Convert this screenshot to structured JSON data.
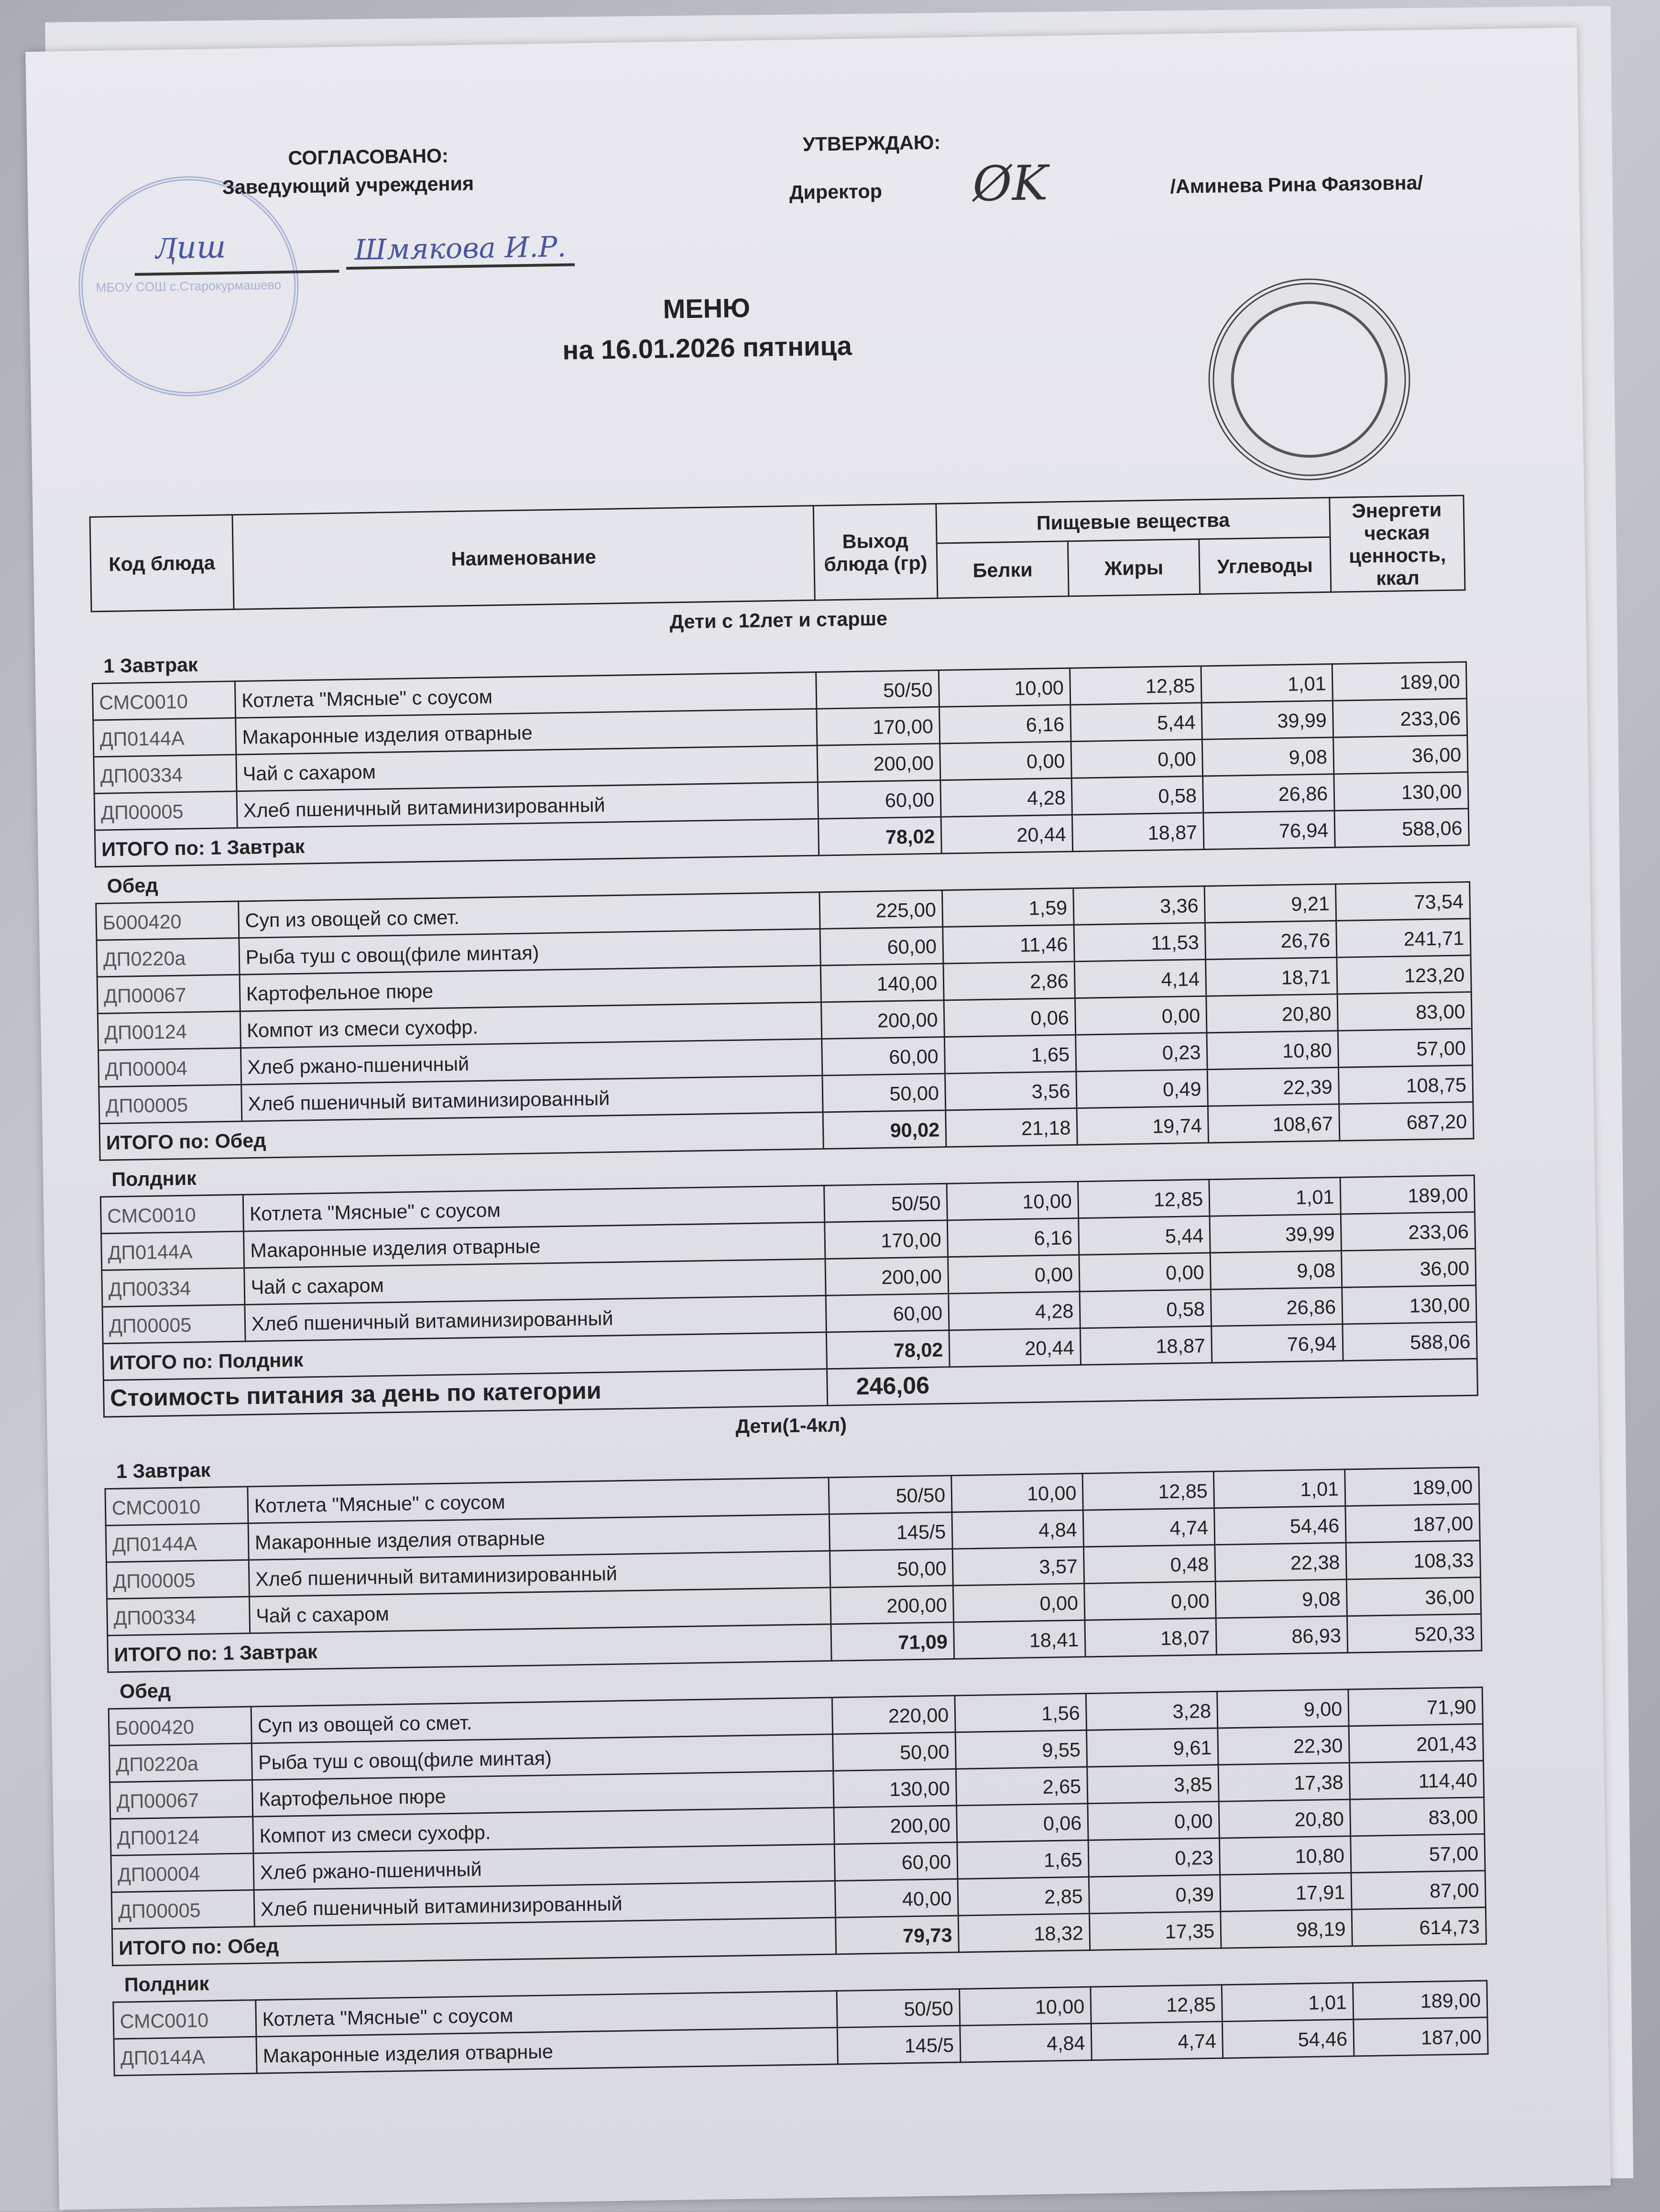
{
  "header": {
    "agreed": "СОГЛАСОВАНО:",
    "agreed_role": "Заведующий  учреждения",
    "agreed_name_handwritten": "Шмякова И.Р.",
    "approve": "УТВЕРЖДАЮ:",
    "approve_role": "Директор",
    "approve_name": "/Аминева Рина Фаязовна/",
    "stamp_text": "МБОУ СОШ с.Старокурмашево"
  },
  "title": "МЕНЮ",
  "subtitle": "на 16.01.2026  пятница",
  "columns": {
    "code": "Код блюда",
    "name": "Наименование",
    "yield": "Выход блюда (гр)",
    "nutrients": "Пищевые вещества",
    "protein": "Белки",
    "fat": "Жиры",
    "carbs": "Углеводы",
    "energy": "Энергети ческая ценность, ккал"
  },
  "categories": [
    {
      "title": "Дети с 12лет и старше",
      "meals": [
        {
          "name": "1 Завтрак",
          "rows": [
            [
              "СМС0010",
              "Котлета \"Мясные\" с соусом",
              "50/50",
              "10,00",
              "12,85",
              "1,01",
              "189,00"
            ],
            [
              "ДП0144А",
              "Макаронные изделия отварные",
              "170,00",
              "6,16",
              "5,44",
              "39,99",
              "233,06"
            ],
            [
              "ДП00334",
              "Чай с сахаром",
              "200,00",
              "0,00",
              "0,00",
              "9,08",
              "36,00"
            ],
            [
              "ДП00005",
              "Хлеб пшеничный витаминизированный",
              "60,00",
              "4,28",
              "0,58",
              "26,86",
              "130,00"
            ]
          ],
          "total": [
            "ИТОГО по: 1 Завтрак",
            "78,02",
            "20,44",
            "18,87",
            "76,94",
            "588,06"
          ]
        },
        {
          "name": "Обед",
          "rows": [
            [
              "Б000420",
              "Суп из овощей со смет.",
              "225,00",
              "1,59",
              "3,36",
              "9,21",
              "73,54"
            ],
            [
              "ДП0220а",
              "Рыба туш с овощ(филе минтая)",
              "60,00",
              "11,46",
              "11,53",
              "26,76",
              "241,71"
            ],
            [
              "ДП00067",
              "Картофельное пюре",
              "140,00",
              "2,86",
              "4,14",
              "18,71",
              "123,20"
            ],
            [
              "ДП00124",
              "Компот из смеси сухофр.",
              "200,00",
              "0,06",
              "0,00",
              "20,80",
              "83,00"
            ],
            [
              "ДП00004",
              "Хлеб ржано-пшеничный",
              "60,00",
              "1,65",
              "0,23",
              "10,80",
              "57,00"
            ],
            [
              "ДП00005",
              "Хлеб пшеничный витаминизированный",
              "50,00",
              "3,56",
              "0,49",
              "22,39",
              "108,75"
            ]
          ],
          "total": [
            "ИТОГО по: Обед",
            "90,02",
            "21,18",
            "19,74",
            "108,67",
            "687,20"
          ]
        },
        {
          "name": "Полдник",
          "rows": [
            [
              "СМС0010",
              "Котлета \"Мясные\" с соусом",
              "50/50",
              "10,00",
              "12,85",
              "1,01",
              "189,00"
            ],
            [
              "ДП0144А",
              "Макаронные изделия отварные",
              "170,00",
              "6,16",
              "5,44",
              "39,99",
              "233,06"
            ],
            [
              "ДП00334",
              "Чай с сахаром",
              "200,00",
              "0,00",
              "0,00",
              "9,08",
              "36,00"
            ],
            [
              "ДП00005",
              "Хлеб пшеничный витаминизированный",
              "60,00",
              "4,28",
              "0,58",
              "26,86",
              "130,00"
            ]
          ],
          "total": [
            "ИТОГО по: Полдник",
            "78,02",
            "20,44",
            "18,87",
            "76,94",
            "588,06"
          ]
        }
      ],
      "cost": [
        "Стоимость питания за день по категории",
        "246,06"
      ]
    },
    {
      "title": "Дети(1-4кл)",
      "meals": [
        {
          "name": "1 Завтрак",
          "rows": [
            [
              "СМС0010",
              "Котлета \"Мясные\" с соусом",
              "50/50",
              "10,00",
              "12,85",
              "1,01",
              "189,00"
            ],
            [
              "ДП0144А",
              "Макаронные изделия отварные",
              "145/5",
              "4,84",
              "4,74",
              "54,46",
              "187,00"
            ],
            [
              "ДП00005",
              "Хлеб пшеничный витаминизированный",
              "50,00",
              "3,57",
              "0,48",
              "22,38",
              "108,33"
            ],
            [
              "ДП00334",
              "Чай с сахаром",
              "200,00",
              "0,00",
              "0,00",
              "9,08",
              "36,00"
            ]
          ],
          "total": [
            "ИТОГО по: 1 Завтрак",
            "71,09",
            "18,41",
            "18,07",
            "86,93",
            "520,33"
          ]
        },
        {
          "name": "Обед",
          "rows": [
            [
              "Б000420",
              "Суп из овощей со смет.",
              "220,00",
              "1,56",
              "3,28",
              "9,00",
              "71,90"
            ],
            [
              "ДП0220а",
              "Рыба туш с овощ(филе минтая)",
              "50,00",
              "9,55",
              "9,61",
              "22,30",
              "201,43"
            ],
            [
              "ДП00067",
              "Картофельное пюре",
              "130,00",
              "2,65",
              "3,85",
              "17,38",
              "114,40"
            ],
            [
              "ДП00124",
              "Компот из смеси сухофр.",
              "200,00",
              "0,06",
              "0,00",
              "20,80",
              "83,00"
            ],
            [
              "ДП00004",
              "Хлеб ржано-пшеничный",
              "60,00",
              "1,65",
              "0,23",
              "10,80",
              "57,00"
            ],
            [
              "ДП00005",
              "Хлеб пшеничный витаминизированный",
              "40,00",
              "2,85",
              "0,39",
              "17,91",
              "87,00"
            ]
          ],
          "total": [
            "ИТОГО по: Обед",
            "79,73",
            "18,32",
            "17,35",
            "98,19",
            "614,73"
          ]
        },
        {
          "name": "Полдник",
          "rows": [
            [
              "СМС0010",
              "Котлета \"Мясные\" с соусом",
              "50/50",
              "10,00",
              "12,85",
              "1,01",
              "189,00"
            ],
            [
              "ДП0144А",
              "Макаронные изделия отварные",
              "145/5",
              "4,84",
              "4,74",
              "54,46",
              "187,00"
            ]
          ]
        }
      ]
    }
  ]
}
